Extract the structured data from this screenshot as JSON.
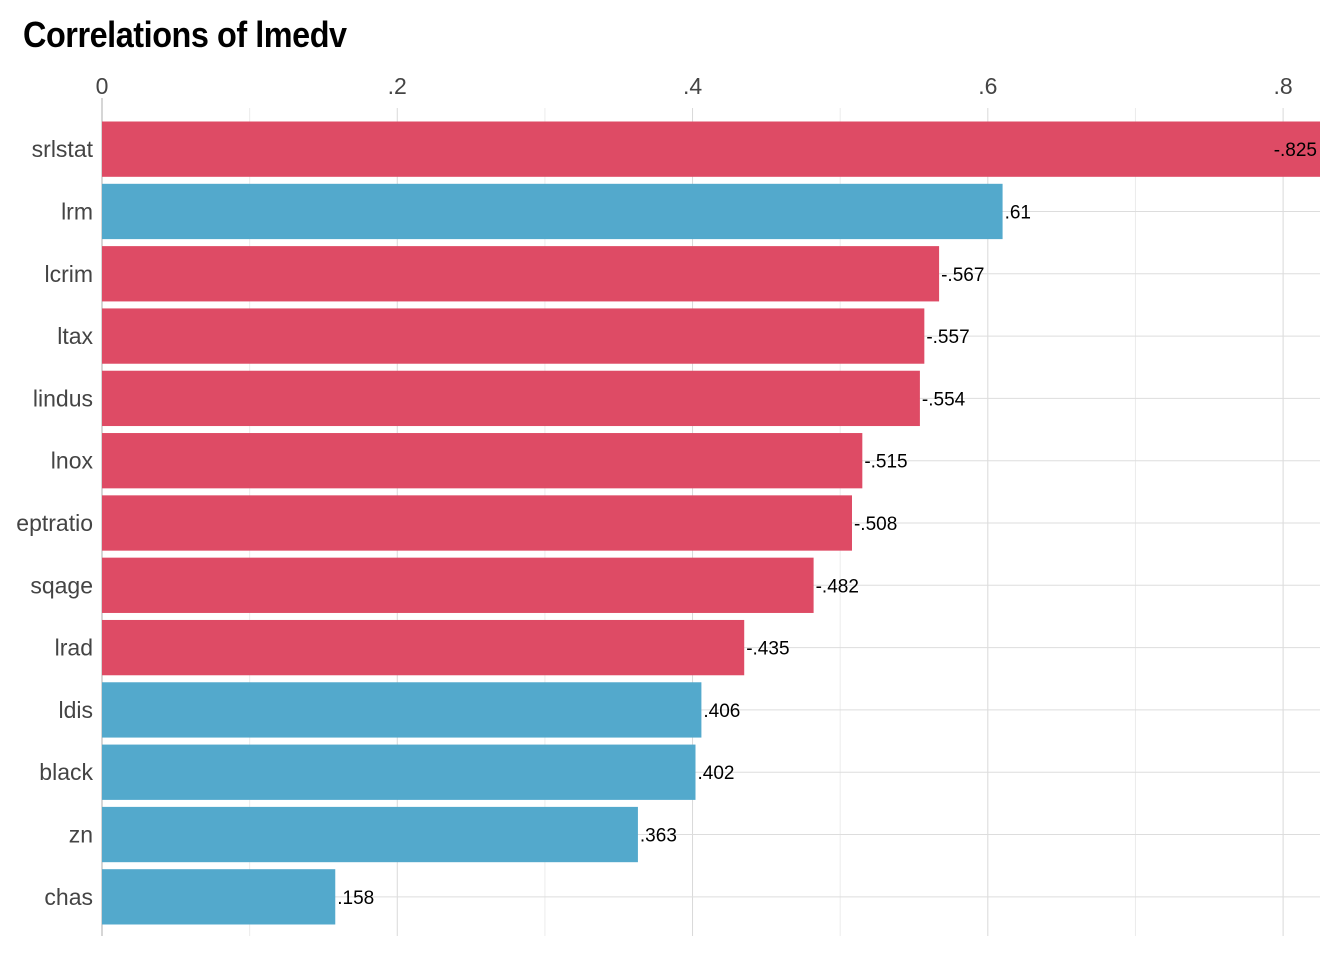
{
  "chart_data": {
    "type": "bar",
    "orientation": "horizontal",
    "title": "Correlations of lmedv",
    "xlabel": "",
    "ylabel": "",
    "xlim": [
      0,
      0.825
    ],
    "x_ticks": [
      0,
      0.2,
      0.4,
      0.6,
      0.8
    ],
    "x_tick_labels": [
      "0",
      ".2",
      ".4",
      ".6",
      ".8"
    ],
    "x_tick_position": "top",
    "grid": true,
    "categories": [
      "srlstat",
      "lrm",
      "lcrim",
      "ltax",
      "lindus",
      "lnox",
      "eptratio",
      "sqage",
      "lrad",
      "ldis",
      "black",
      "zn",
      "chas"
    ],
    "values": [
      0.825,
      0.61,
      0.567,
      0.557,
      0.554,
      0.515,
      0.508,
      0.482,
      0.435,
      0.406,
      0.402,
      0.363,
      0.158
    ],
    "data_labels": [
      "-.825",
      ".61",
      "-.567",
      "-.557",
      "-.554",
      "-.515",
      "-.508",
      "-.482",
      "-.435",
      ".406",
      ".402",
      ".363",
      ".158"
    ],
    "signs": [
      "negative",
      "positive",
      "negative",
      "negative",
      "negative",
      "negative",
      "negative",
      "negative",
      "negative",
      "positive",
      "positive",
      "positive",
      "positive"
    ],
    "colors": {
      "negative": "#de4b65",
      "positive": "#53a9cc"
    }
  }
}
